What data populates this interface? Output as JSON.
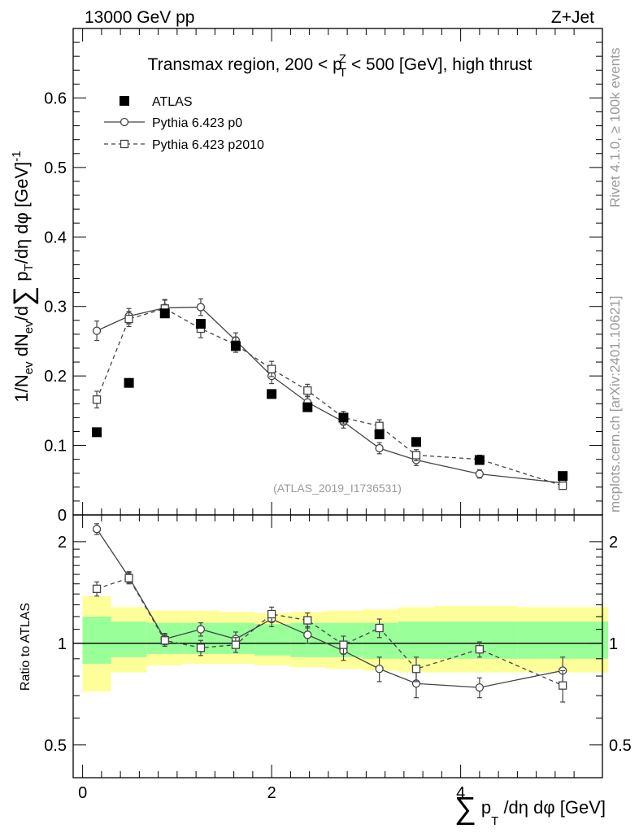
{
  "header": {
    "energy_label": "13000 GeV pp",
    "process_label": "Z+Jet"
  },
  "side_labels": {
    "rivet": "Rivet 4.1.0, ≥ 100k events",
    "mcplots": "mcplots.cern.ch [arXiv:2401.10621]"
  },
  "chart_data": [
    {
      "type": "scatter",
      "panel": "main",
      "title": "Transmax region, 200 < p_T^Z < 500 [GeV], high thrust",
      "ylabel": "1/N_ev dN_ev/d∑p_T/dη dφ  [GeV]^-1",
      "xlim": [
        -0.1,
        5.5
      ],
      "ylim": [
        0,
        0.7
      ],
      "y_ticks": [
        0,
        0.1,
        0.2,
        0.3,
        0.4,
        0.5,
        0.6
      ],
      "y_tick_labels": [
        "0",
        "0.1",
        "0.2",
        "0.3",
        "0.4",
        "0.5",
        "0.6"
      ],
      "watermark": "(ATLAS_2019_I1736531)",
      "legend": {
        "position": "top-left",
        "entries": [
          "ATLAS",
          "Pythia 6.423 p0",
          "Pythia 6.423 p2010"
        ]
      },
      "series": [
        {
          "name": "ATLAS",
          "marker": "filled-square",
          "color": "#000000",
          "x": [
            0.15,
            0.49,
            0.87,
            1.25,
            1.62,
            2.0,
            2.38,
            2.76,
            3.14,
            3.53,
            4.2,
            5.08
          ],
          "y": [
            0.119,
            0.19,
            0.29,
            0.275,
            0.243,
            0.174,
            0.155,
            0.14,
            0.116,
            0.105,
            0.079,
            0.056
          ]
        },
        {
          "name": "Pythia 6.423 p0",
          "marker": "open-circle",
          "line": "solid",
          "color": "#444444",
          "x": [
            0.15,
            0.49,
            0.87,
            1.25,
            1.62,
            2.0,
            2.38,
            2.76,
            3.14,
            3.53,
            4.2,
            5.08
          ],
          "y": [
            0.265,
            0.286,
            0.298,
            0.299,
            0.251,
            0.2,
            0.162,
            0.134,
            0.096,
            0.079,
            0.059,
            0.046
          ],
          "err": [
            0.014,
            0.011,
            0.011,
            0.012,
            0.011,
            0.011,
            0.009,
            0.009,
            0.008,
            0.008,
            0.006,
            0.005
          ]
        },
        {
          "name": "Pythia 6.423 p2010",
          "marker": "open-square",
          "line": "dashed",
          "color": "#444444",
          "x": [
            0.15,
            0.49,
            0.87,
            1.25,
            1.62,
            2.0,
            2.38,
            2.76,
            3.14,
            3.53,
            4.2,
            5.08
          ],
          "y": [
            0.166,
            0.282,
            0.297,
            0.268,
            0.245,
            0.21,
            0.179,
            0.14,
            0.128,
            0.086,
            0.08,
            0.042
          ],
          "err": [
            0.012,
            0.011,
            0.013,
            0.013,
            0.011,
            0.011,
            0.009,
            0.009,
            0.009,
            0.008,
            0.006,
            0.005
          ]
        }
      ]
    },
    {
      "type": "scatter",
      "panel": "ratio",
      "ylabel": "Ratio to ATLAS",
      "xlabel": "∑p_T /dη dφ [GeV]",
      "xlim": [
        -0.1,
        5.5
      ],
      "ylim": [
        0.4,
        2.4
      ],
      "yscale": "log",
      "x_ticks": [
        0,
        2,
        4
      ],
      "x_tick_labels": [
        "0",
        "2",
        "4"
      ],
      "y_ticks": [
        0.5,
        1,
        2
      ],
      "y_tick_labels": [
        "0.5",
        "1",
        "2"
      ],
      "uncertainty_bands": {
        "bin_edges": [
          0.0,
          0.3,
          0.68,
          1.06,
          1.44,
          1.82,
          2.2,
          2.58,
          2.96,
          3.34,
          3.72,
          4.6,
          5.56
        ],
        "yellow_low": [
          0.72,
          0.82,
          0.86,
          0.87,
          0.87,
          0.86,
          0.85,
          0.84,
          0.83,
          0.82,
          0.82,
          0.82
        ],
        "yellow_high": [
          1.38,
          1.28,
          1.25,
          1.25,
          1.24,
          1.23,
          1.24,
          1.25,
          1.26,
          1.28,
          1.29,
          1.28
        ],
        "green_low": [
          0.87,
          0.91,
          0.93,
          0.93,
          0.93,
          0.92,
          0.91,
          0.91,
          0.9,
          0.9,
          0.9,
          0.9
        ],
        "green_high": [
          1.2,
          1.16,
          1.15,
          1.15,
          1.15,
          1.14,
          1.15,
          1.15,
          1.15,
          1.16,
          1.16,
          1.16
        ]
      },
      "series": [
        {
          "name": "Pythia 6.423 p0",
          "marker": "open-circle",
          "line": "solid",
          "x": [
            0.15,
            0.49,
            0.87,
            1.25,
            1.62,
            2.0,
            2.38,
            2.76,
            3.14,
            3.53,
            4.2,
            5.08
          ],
          "y": [
            2.18,
            1.57,
            1.03,
            1.1,
            1.03,
            1.18,
            1.06,
            0.95,
            0.84,
            0.76,
            0.74,
            0.83
          ],
          "err": [
            0.08,
            0.06,
            0.04,
            0.05,
            0.05,
            0.06,
            0.06,
            0.06,
            0.07,
            0.07,
            0.05,
            0.08
          ]
        },
        {
          "name": "Pythia 6.423 p2010",
          "marker": "open-square",
          "line": "dashed",
          "x": [
            0.15,
            0.49,
            0.87,
            1.25,
            1.62,
            2.0,
            2.38,
            2.76,
            3.14,
            3.53,
            4.2,
            5.08
          ],
          "y": [
            1.45,
            1.56,
            1.02,
            0.97,
            0.99,
            1.22,
            1.17,
            0.99,
            1.11,
            0.84,
            0.96,
            0.75
          ],
          "err": [
            0.07,
            0.06,
            0.04,
            0.05,
            0.05,
            0.06,
            0.06,
            0.06,
            0.07,
            0.07,
            0.05,
            0.08
          ]
        }
      ]
    }
  ]
}
